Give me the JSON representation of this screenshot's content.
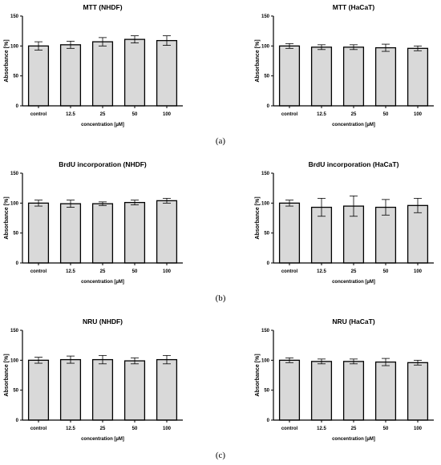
{
  "panel_labels": [
    "(a)",
    "(b)",
    "(c)"
  ],
  "chart_data": [
    {
      "type": "bar",
      "title": "MTT (NHDF)",
      "xlabel": "concentration [µM]",
      "ylabel": "Absorbance [%]",
      "categories": [
        "control",
        "12.5",
        "25",
        "50",
        "100"
      ],
      "values": [
        100,
        102,
        107,
        111,
        109
      ],
      "errors": [
        7,
        6,
        7,
        6,
        8
      ],
      "ylim": [
        0,
        150
      ],
      "yticks": [
        0,
        50,
        100,
        150
      ],
      "bar_color": "#d9d9d9"
    },
    {
      "type": "bar",
      "title": "MTT (HaCaT)",
      "xlabel": "concentration [µM]",
      "ylabel": "Absorbance [%]",
      "categories": [
        "control",
        "12.5",
        "25",
        "50",
        "100"
      ],
      "values": [
        100,
        98,
        98,
        97,
        96
      ],
      "errors": [
        4,
        4,
        4,
        6,
        4
      ],
      "ylim": [
        0,
        150
      ],
      "yticks": [
        0,
        50,
        100,
        150
      ],
      "bar_color": "#d9d9d9"
    },
    {
      "type": "bar",
      "title": "BrdU incorporation (NHDF)",
      "xlabel": "concentration [µM]",
      "ylabel": "Absorbance [%]",
      "categories": [
        "control",
        "12.5",
        "25",
        "50",
        "100"
      ],
      "values": [
        100,
        99,
        99,
        101,
        104
      ],
      "errors": [
        5,
        6,
        3,
        4,
        4
      ],
      "ylim": [
        0,
        150
      ],
      "yticks": [
        0,
        50,
        100,
        150
      ],
      "bar_color": "#d9d9d9"
    },
    {
      "type": "bar",
      "title": "BrdU incorporation (HaCaT)",
      "xlabel": "concentration [µM]",
      "ylabel": "Absorbance [%]",
      "categories": [
        "control",
        "12.5",
        "25",
        "50",
        "100"
      ],
      "values": [
        100,
        93,
        95,
        93,
        96
      ],
      "errors": [
        5,
        15,
        17,
        13,
        12
      ],
      "ylim": [
        0,
        150
      ],
      "yticks": [
        0,
        50,
        100,
        150
      ],
      "bar_color": "#d9d9d9"
    },
    {
      "type": "bar",
      "title": "NRU (NHDF)",
      "xlabel": "concentration [µM]",
      "ylabel": "Absorbance [%]",
      "categories": [
        "control",
        "12.5",
        "25",
        "50",
        "100"
      ],
      "values": [
        100,
        101,
        101,
        99,
        101
      ],
      "errors": [
        5,
        6,
        7,
        5,
        7
      ],
      "ylim": [
        0,
        150
      ],
      "yticks": [
        0,
        50,
        100,
        150
      ],
      "bar_color": "#d9d9d9"
    },
    {
      "type": "bar",
      "title": "NRU (HaCaT)",
      "xlabel": "concentration [µM]",
      "ylabel": "Absorbance [%]",
      "categories": [
        "control",
        "12.5",
        "25",
        "50",
        "100"
      ],
      "values": [
        100,
        98,
        98,
        97,
        96
      ],
      "errors": [
        4,
        4,
        4,
        6,
        4
      ],
      "ylim": [
        0,
        150
      ],
      "yticks": [
        0,
        50,
        100,
        150
      ],
      "bar_color": "#d9d9d9"
    }
  ]
}
